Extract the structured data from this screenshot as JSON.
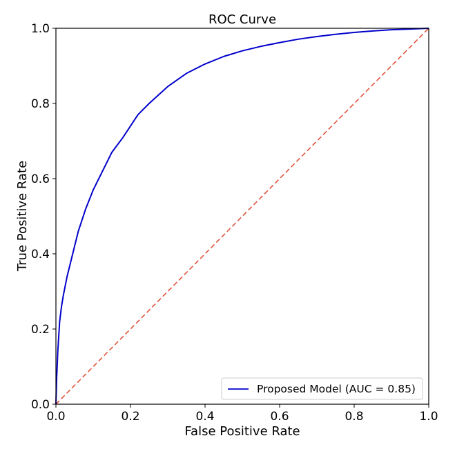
{
  "chart_data": {
    "type": "line",
    "title": "ROC Curve",
    "xlabel": "False Positive Rate",
    "ylabel": "True Positive Rate",
    "xlim": [
      0.0,
      1.0
    ],
    "ylim": [
      0.0,
      1.0
    ],
    "xticks": [
      "0.0",
      "0.2",
      "0.4",
      "0.6",
      "0.8",
      "1.0"
    ],
    "yticks": [
      "0.0",
      "0.2",
      "0.4",
      "0.6",
      "0.8",
      "1.0"
    ],
    "grid": false,
    "legend_position": "lower-right",
    "series": [
      {
        "name": "Proposed Model (AUC = 0.85)",
        "color": "#0000cc",
        "style": "solid",
        "x": [
          0.0,
          0.002,
          0.005,
          0.01,
          0.015,
          0.02,
          0.03,
          0.04,
          0.05,
          0.06,
          0.08,
          0.1,
          0.12,
          0.15,
          0.18,
          0.2,
          0.22,
          0.25,
          0.3,
          0.35,
          0.4,
          0.45,
          0.5,
          0.55,
          0.6,
          0.65,
          0.7,
          0.75,
          0.8,
          0.85,
          0.9,
          0.95,
          1.0
        ],
        "y": [
          0.0,
          0.07,
          0.14,
          0.22,
          0.26,
          0.29,
          0.34,
          0.38,
          0.42,
          0.46,
          0.52,
          0.57,
          0.61,
          0.67,
          0.71,
          0.74,
          0.77,
          0.8,
          0.845,
          0.88,
          0.905,
          0.925,
          0.94,
          0.952,
          0.962,
          0.971,
          0.978,
          0.984,
          0.989,
          0.993,
          0.996,
          0.998,
          1.0
        ]
      },
      {
        "name": "",
        "color": "#e0533a",
        "style": "dashed",
        "x": [
          0.0,
          1.0
        ],
        "y": [
          0.0,
          1.0
        ]
      }
    ],
    "legend": [
      {
        "label": "Proposed Model (AUC = 0.85)",
        "color": "#0000cc"
      }
    ]
  }
}
